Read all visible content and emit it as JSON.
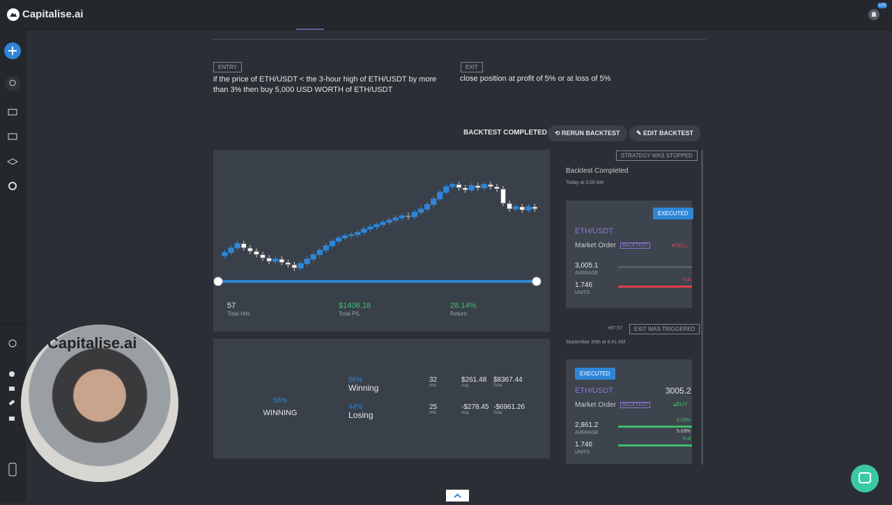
{
  "header": {
    "brand": "Capitalise.ai",
    "badge": "105"
  },
  "strategy": {
    "entry_label": "ENTRY",
    "entry_text": "if the price of ETH/USDT < the 3-hour high of ETH/USDT by more than 3% then buy 5,000 USD WORTH of ETH/USDT",
    "exit_label": "EXIT",
    "exit_text": "close position at profit of 5% or at loss of 5%"
  },
  "toolbar": {
    "status": "BACKTEST COMPLETED",
    "rerun": "RERUN BACKTEST",
    "edit": "EDIT BACKTEST"
  },
  "chart": {
    "open": 33,
    "closes": [
      36,
      40,
      44,
      40,
      37,
      34,
      31,
      28,
      30,
      27,
      25,
      22,
      26,
      30,
      34,
      38,
      42,
      46,
      49,
      51,
      52,
      54,
      57,
      59,
      61,
      63,
      65,
      67,
      69,
      68,
      72,
      75,
      79,
      84,
      90,
      95,
      97,
      94,
      92,
      96,
      94,
      97,
      95,
      93,
      80,
      75,
      77,
      74,
      77,
      75
    ]
  },
  "stats": [
    {
      "value": "57",
      "label": "Total Hits"
    },
    {
      "value": "$1406.18",
      "label": "Total P/L"
    },
    {
      "value": "28.14%",
      "label": "Return"
    }
  ],
  "winloss": {
    "gauge": {
      "value": 56,
      "label": "56%"
    },
    "gauge_caption": "WINNING",
    "rows": [
      {
        "pct": "56%",
        "name": "Winning",
        "hits": "32",
        "hits_label": "Hits",
        "avg": "$261.48",
        "avg_label": "Avg",
        "total": "$8367.44",
        "total_label": "Total"
      },
      {
        "pct": "44%",
        "name": "Losing",
        "hits": "25",
        "hits_label": "Hits",
        "avg": "-$278.45",
        "avg_label": "Avg",
        "total": "-$6961.26",
        "total_label": "Total"
      }
    ]
  },
  "log": {
    "stopped": "STRATEGY WAS STOPPED",
    "event1": "Backtest Completed",
    "time1": "Today at 3:00 AM",
    "card1": {
      "status": "EXECUTED",
      "pair": "ETH/USDT",
      "order": "Market Order",
      "tag": "BACKTEST",
      "side": "SELL",
      "avg": "3,005.1",
      "avg_label": "AVERAGE",
      "units": "1.746",
      "units_label": "UNITS",
      "fill": "Full"
    },
    "hit": "HIT 57",
    "exit": "EXIT WAS TRIGGERED",
    "time2": "September 30th at 6:41 AM",
    "card2": {
      "status": "EXECUTED",
      "pair": "ETH/USDT",
      "price": "3005.2",
      "order": "Market Order",
      "tag": "BACKTEST",
      "side": "BUY",
      "avg": "2,861.2",
      "avg_label": "AVERAGE",
      "pct1": "5.03%",
      "pct2": "5.03%",
      "units": "1.746",
      "units_label": "UNITS",
      "fill": "Full"
    }
  },
  "webcam": {
    "shirt_text": "Capitalise.ai"
  }
}
